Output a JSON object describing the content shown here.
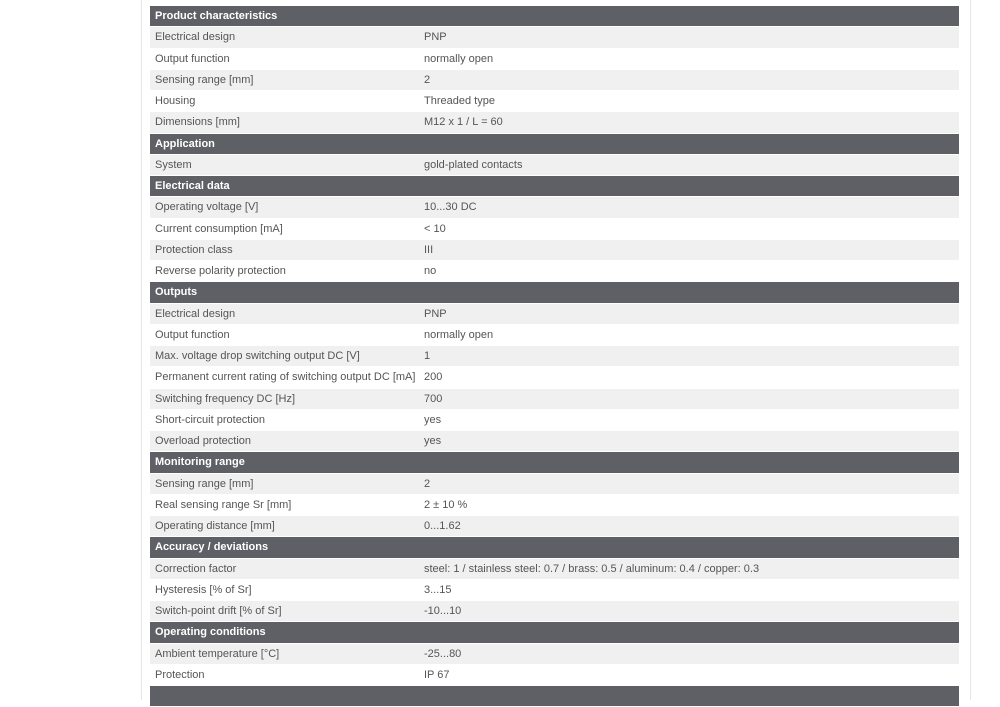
{
  "sections": [
    {
      "title": "Product characteristics",
      "rows": [
        [
          "Electrical design",
          "PNP"
        ],
        [
          "Output function",
          "normally open"
        ],
        [
          "Sensing range [mm]",
          "2"
        ],
        [
          "Housing",
          "Threaded type"
        ],
        [
          "Dimensions [mm]",
          "M12 x 1 / L = 60"
        ]
      ]
    },
    {
      "title": "Application",
      "rows": [
        [
          "System",
          "gold-plated contacts"
        ]
      ]
    },
    {
      "title": "Electrical data",
      "rows": [
        [
          "Operating voltage [V]",
          "10...30 DC"
        ],
        [
          "Current consumption [mA]",
          "< 10"
        ],
        [
          "Protection class",
          "III"
        ],
        [
          "Reverse polarity protection",
          "no"
        ]
      ]
    },
    {
      "title": "Outputs",
      "rows": [
        [
          "Electrical design",
          "PNP"
        ],
        [
          "Output function",
          "normally open"
        ],
        [
          "Max. voltage drop switching output DC [V]",
          "1"
        ],
        [
          "Permanent current rating of switching output DC [mA]",
          "200"
        ],
        [
          "Switching frequency DC [Hz]",
          "700"
        ],
        [
          "Short-circuit protection",
          "yes"
        ],
        [
          "Overload protection",
          "yes"
        ]
      ]
    },
    {
      "title": "Monitoring range",
      "rows": [
        [
          "Sensing range [mm]",
          "2"
        ],
        [
          "Real sensing range Sr [mm]",
          "2 ± 10 %"
        ],
        [
          "Operating distance [mm]",
          "0...1.62"
        ]
      ]
    },
    {
      "title": "Accuracy / deviations",
      "rows": [
        [
          "Correction factor",
          "steel: 1 / stainless steel: 0.7 / brass: 0.5 / aluminum: 0.4 / copper: 0.3"
        ],
        [
          "Hysteresis [% of Sr]",
          "3...15"
        ],
        [
          "Switch-point drift [% of Sr]",
          "-10...10"
        ]
      ]
    },
    {
      "title": "Operating conditions",
      "rows": [
        [
          "Ambient temperature [°C]",
          "-25...80"
        ],
        [
          "Protection",
          "IP 67"
        ]
      ]
    },
    {
      "title": "",
      "rows": []
    }
  ],
  "colors": {
    "header": "#5f6066",
    "stripe": "#f0f0f0",
    "text": "#555555"
  }
}
